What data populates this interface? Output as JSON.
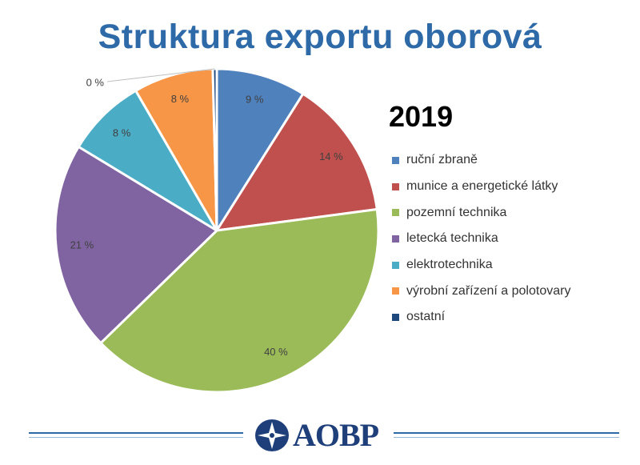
{
  "title": "Struktura exportu oborová",
  "year_label": "2019",
  "chart_data": {
    "type": "pie",
    "title": "Struktura exportu oborová",
    "subtitle": "2019",
    "legend_position": "right",
    "slices": [
      {
        "name": "ruční zbraně",
        "value": 9,
        "label": "9 %",
        "color": "#4f81bd"
      },
      {
        "name": "munice a energetické látky",
        "value": 14,
        "label": "14 %",
        "color": "#c0504d"
      },
      {
        "name": "pozemní technika",
        "value": 40,
        "label": "40 %",
        "color": "#9bbb59"
      },
      {
        "name": "letecká technika",
        "value": 21,
        "label": "21 %",
        "color": "#8064a2"
      },
      {
        "name": "elektrotechnika",
        "value": 8,
        "label": "8 %",
        "color": "#4bacc6"
      },
      {
        "name": "výrobní zařízení a polotovary",
        "value": 8,
        "label": "8 %",
        "color": "#f79646"
      },
      {
        "name": "ostatní",
        "value": 0.4,
        "label": "0 %",
        "color": "#1f497d"
      }
    ]
  },
  "footer": {
    "logo_text": "AOBP",
    "logo_icon": "aobp-logo-icon",
    "accent_color": "#2e6aa8"
  }
}
